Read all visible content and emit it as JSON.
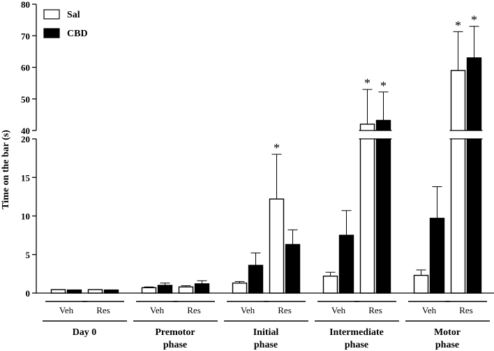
{
  "chart_data": {
    "type": "bar",
    "ylabel": "Time on the bar (s)",
    "legend": {
      "position": "top-left",
      "items": [
        {
          "name": "Sal",
          "color": "#ffffff"
        },
        {
          "name": "CBD",
          "color": "#000000"
        }
      ]
    },
    "y_axis": {
      "broken": true,
      "lower_range": [
        0,
        20
      ],
      "upper_range": [
        40,
        80
      ],
      "lower_ticks": [
        "0",
        "5",
        "10",
        "15",
        "20"
      ],
      "upper_ticks": [
        "40",
        "50",
        "60",
        "70",
        "80"
      ]
    },
    "series": [
      {
        "name": "Sal",
        "color": "#ffffff"
      },
      {
        "name": "CBD",
        "color": "#000000"
      }
    ],
    "phases": [
      {
        "label_lines": [
          "Day 0"
        ],
        "subgroups": [
          {
            "label": "Veh",
            "bars": [
              {
                "series": "Sal",
                "value": 0.45,
                "error": 0.0,
                "sig": false
              },
              {
                "series": "CBD",
                "value": 0.4,
                "error": 0.0,
                "sig": false
              }
            ]
          },
          {
            "label": "Res",
            "bars": [
              {
                "series": "Sal",
                "value": 0.45,
                "error": 0.0,
                "sig": false
              },
              {
                "series": "CBD",
                "value": 0.4,
                "error": 0.0,
                "sig": false
              }
            ]
          }
        ]
      },
      {
        "label_lines": [
          "Premotor",
          "phase"
        ],
        "subgroups": [
          {
            "label": "Veh",
            "bars": [
              {
                "series": "Sal",
                "value": 0.7,
                "error": 0.1,
                "sig": false
              },
              {
                "series": "CBD",
                "value": 1.0,
                "error": 0.3,
                "sig": false
              }
            ]
          },
          {
            "label": "Res",
            "bars": [
              {
                "series": "Sal",
                "value": 0.8,
                "error": 0.15,
                "sig": false
              },
              {
                "series": "CBD",
                "value": 1.2,
                "error": 0.4,
                "sig": false
              }
            ]
          }
        ]
      },
      {
        "label_lines": [
          "Initial",
          "phase"
        ],
        "subgroups": [
          {
            "label": "Veh",
            "bars": [
              {
                "series": "Sal",
                "value": 1.3,
                "error": 0.2,
                "sig": false
              },
              {
                "series": "CBD",
                "value": 3.6,
                "error": 1.6,
                "sig": false
              }
            ]
          },
          {
            "label": "Res",
            "bars": [
              {
                "series": "Sal",
                "value": 12.2,
                "error": 5.8,
                "sig": true
              },
              {
                "series": "CBD",
                "value": 6.3,
                "error": 1.9,
                "sig": false
              }
            ]
          }
        ]
      },
      {
        "label_lines": [
          "Intermediate",
          "phase"
        ],
        "subgroups": [
          {
            "label": "Veh",
            "bars": [
              {
                "series": "Sal",
                "value": 2.2,
                "error": 0.5,
                "sig": false
              },
              {
                "series": "CBD",
                "value": 7.5,
                "error": 3.2,
                "sig": false
              }
            ]
          },
          {
            "label": "Res",
            "bars": [
              {
                "series": "Sal",
                "value": 42,
                "error": 11,
                "sig": true
              },
              {
                "series": "CBD",
                "value": 43.2,
                "error": 9,
                "sig": true
              }
            ]
          }
        ]
      },
      {
        "label_lines": [
          "Motor",
          "phase"
        ],
        "subgroups": [
          {
            "label": "Veh",
            "bars": [
              {
                "series": "Sal",
                "value": 2.3,
                "error": 0.7,
                "sig": false
              },
              {
                "series": "CBD",
                "value": 9.7,
                "error": 4.1,
                "sig": false
              }
            ]
          },
          {
            "label": "Res",
            "bars": [
              {
                "series": "Sal",
                "value": 59,
                "error": 12.3,
                "sig": true
              },
              {
                "series": "CBD",
                "value": 63,
                "error": 10,
                "sig": true
              }
            ]
          }
        ]
      }
    ],
    "significance_symbol": "*"
  }
}
